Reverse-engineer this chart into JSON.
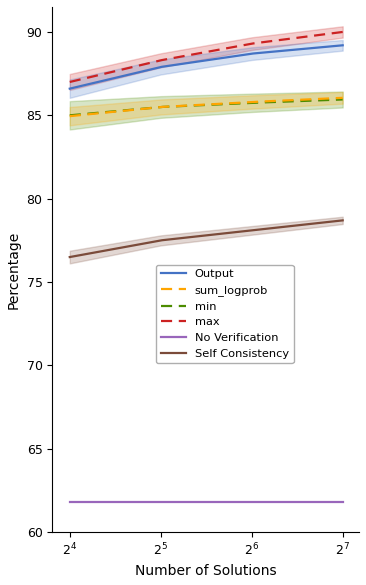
{
  "x_values": [
    16,
    32,
    64,
    128
  ],
  "x_ticks": [
    16,
    32,
    64,
    128
  ],
  "xlabel": "Number of Solutions",
  "ylabel": "Percentage",
  "ylim": [
    60,
    91.5
  ],
  "yticks": [
    60,
    65,
    70,
    75,
    80,
    85,
    90
  ],
  "output_mean": [
    86.6,
    87.9,
    88.7,
    89.2
  ],
  "output_std": [
    0.55,
    0.45,
    0.38,
    0.32
  ],
  "output_color": "#4472C4",
  "sum_logprob_mean": [
    84.95,
    85.5,
    85.8,
    86.05
  ],
  "sum_logprob_std": [
    0.55,
    0.45,
    0.4,
    0.35
  ],
  "sum_logprob_color": "#FFA500",
  "min_mean": [
    85.0,
    85.5,
    85.75,
    85.95
  ],
  "min_std": [
    0.85,
    0.65,
    0.55,
    0.48
  ],
  "min_color": "#4C8C00",
  "max_mean": [
    87.0,
    88.3,
    89.3,
    90.0
  ],
  "max_std": [
    0.48,
    0.42,
    0.38,
    0.34
  ],
  "max_color": "#CC2222",
  "no_verif_mean": [
    61.8,
    61.8,
    61.8,
    61.8
  ],
  "no_verif_std": [
    0.0,
    0.0,
    0.0,
    0.0
  ],
  "no_verif_color": "#9966BB",
  "self_consist_mean": [
    76.5,
    77.5,
    78.1,
    78.7
  ],
  "self_consist_std": [
    0.38,
    0.3,
    0.26,
    0.22
  ],
  "self_consist_color": "#7B4B3A",
  "legend_entries": [
    "Output",
    "sum_logprob",
    "min",
    "max",
    "No Verification",
    "Self Consistency"
  ],
  "n_smooth": 300
}
